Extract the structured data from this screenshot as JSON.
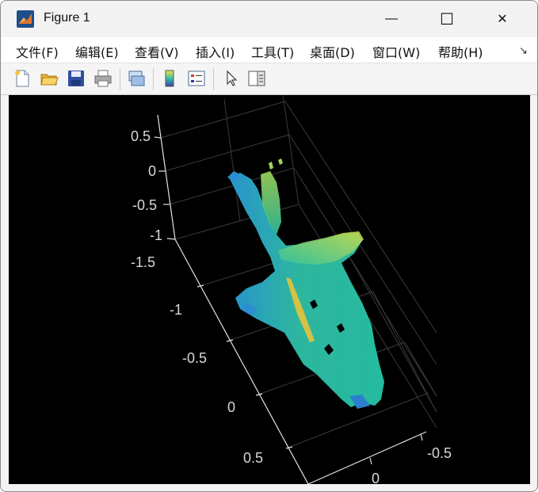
{
  "window": {
    "title": "Figure 1",
    "minimize": "—",
    "maximize": "☐",
    "close": "✕"
  },
  "menu": [
    "文件(F)",
    "编辑(E)",
    "查看(V)",
    "插入(I)",
    "工具(T)",
    "桌面(D)",
    "窗口(W)",
    "帮助(H)"
  ],
  "toolbar_icons": [
    "new-figure-icon",
    "open-file-icon",
    "save-icon",
    "print-icon",
    "link-plot-icon",
    "colorbar-icon",
    "legend-icon",
    "pointer-icon",
    "property-inspector-icon"
  ],
  "axes": {
    "z_ticks": [
      "0.5",
      "0",
      "-0.5",
      "-1"
    ],
    "y_ticks": [
      "-1.5",
      "-1",
      "-0.5",
      "0",
      "0.5"
    ],
    "x_ticks": [
      "-0.5",
      "0"
    ]
  },
  "colors": {
    "background": "#000000",
    "grid": "#3a3a3a",
    "axis": "#e0e0e0"
  }
}
